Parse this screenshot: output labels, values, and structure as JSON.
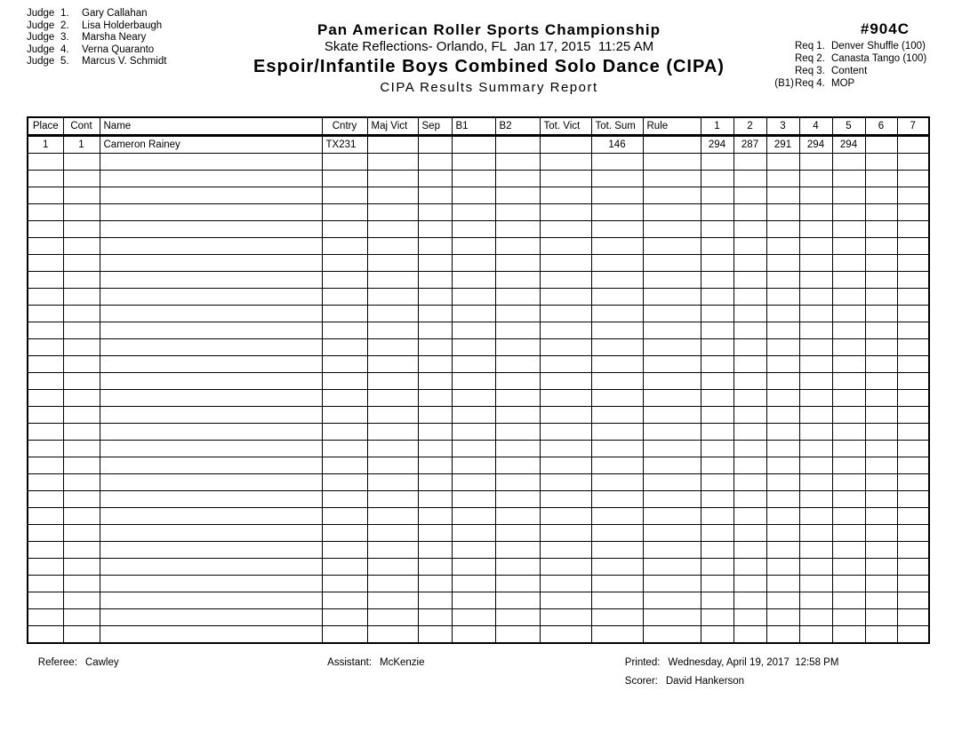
{
  "judges": [
    {
      "label": "Judge",
      "num": "1.",
      "name": "Gary Callahan"
    },
    {
      "label": "Judge",
      "num": "2.",
      "name": "Lisa Holderbaugh"
    },
    {
      "label": "Judge",
      "num": "3.",
      "name": "Marsha Neary"
    },
    {
      "label": "Judge",
      "num": "4.",
      "name": "Verna Quaranto"
    },
    {
      "label": "Judge",
      "num": "5.",
      "name": "Marcus V. Schmidt"
    }
  ],
  "header": {
    "title": "Pan American Roller Sports Championship",
    "subtitle": "Skate Reflections- Orlando, FL  Jan 17, 2015  11:25 AM",
    "event_title": "Espoir/Infantile Boys Combined Solo Dance (CIPA)",
    "report_title": "CIPA Results Summary Report"
  },
  "event_number": "#904C",
  "requirements": [
    {
      "prefix": "",
      "label": "Req 1.",
      "text": "Denver Shuffle (100)"
    },
    {
      "prefix": "",
      "label": "Req 2.",
      "text": "Canasta Tango (100)"
    },
    {
      "prefix": "",
      "label": "Req 3.",
      "text": "Content"
    },
    {
      "prefix": "(B1)",
      "label": "Req 4.",
      "text": "MOP"
    }
  ],
  "table": {
    "columns": [
      "Place",
      "Cont",
      "Name",
      "Cntry",
      "Maj Vict",
      "Sep",
      "B1",
      "B2",
      "Tot. Vict",
      "Tot. Sum",
      "Rule",
      "1",
      "2",
      "3",
      "4",
      "5",
      "6",
      "7"
    ],
    "rows": [
      {
        "place": "1",
        "cont": "1",
        "name": "Cameron Rainey",
        "cntry": "TX231",
        "maj_vict": "",
        "sep": "",
        "b1": "",
        "b2": "",
        "tot_vict": "",
        "tot_sum": "146",
        "rule": "",
        "j1": "294",
        "j2": "287",
        "j3": "291",
        "j4": "294",
        "j5": "294",
        "j6": "",
        "j7": ""
      }
    ],
    "empty_row_count": 29
  },
  "footer": {
    "referee_label": "Referee:",
    "referee_value": "Cawley",
    "assistant_label": "Assistant:",
    "assistant_value": "McKenzie",
    "printed_label": "Printed:",
    "printed_value": "Wednesday, April 19, 2017  12:58 PM",
    "scorer_label": "Scorer:",
    "scorer_value": "David Hankerson"
  }
}
